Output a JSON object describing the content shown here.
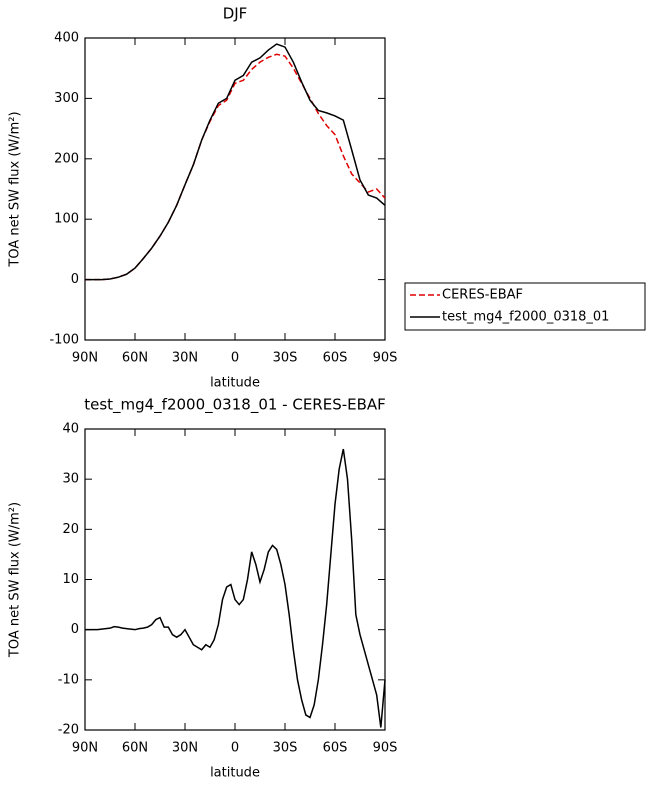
{
  "chart_data": [
    {
      "type": "line",
      "title": "DJF",
      "x_label": "latitude",
      "y_label": "TOA net SW flux (W/m²)",
      "x": [
        90,
        85,
        80,
        75,
        70,
        65,
        60,
        55,
        50,
        45,
        40,
        35,
        30,
        25,
        20,
        15,
        10,
        5,
        0,
        -5,
        -10,
        -15,
        -20,
        -25,
        -30,
        -35,
        -40,
        -45,
        -50,
        -55,
        -60,
        -65,
        -70,
        -75,
        -80,
        -85,
        -90
      ],
      "series": [
        {
          "name": "CERES-EBAF",
          "color": "#e00000",
          "line_style": "dashed",
          "values": [
            0,
            0,
            0,
            1,
            4,
            9,
            19,
            35,
            52,
            72,
            95,
            123,
            157,
            190,
            231,
            262,
            288,
            297,
            325,
            330,
            348,
            360,
            368,
            373,
            370,
            350,
            325,
            300,
            275,
            255,
            240,
            205,
            175,
            160,
            145,
            150,
            135
          ]
        },
        {
          "name": "test_mg4_f2000_0318_01",
          "color": "#000000",
          "line_style": "solid",
          "values": [
            0,
            0,
            0,
            1,
            4,
            9,
            19,
            35,
            52,
            72,
            95,
            123,
            157,
            190,
            231,
            264,
            292,
            300,
            330,
            338,
            360,
            367,
            380,
            390,
            385,
            360,
            327,
            297,
            280,
            276,
            271,
            264,
            215,
            165,
            140,
            135,
            123
          ]
        }
      ],
      "xlim": [
        90,
        -90
      ],
      "xticks": [
        {
          "value": 90,
          "label": "90N"
        },
        {
          "value": 60,
          "label": "60N"
        },
        {
          "value": 30,
          "label": "30N"
        },
        0,
        {
          "value": -30,
          "label": "30S"
        },
        {
          "value": -60,
          "label": "60S"
        },
        {
          "value": -90,
          "label": "90S"
        }
      ],
      "ylim": [
        -100,
        400
      ],
      "yticks": [
        -100,
        0,
        100,
        200,
        300,
        400
      ],
      "legend": "right"
    },
    {
      "type": "line",
      "title": "test_mg4_f2000_0318_01 - CERES-EBAF",
      "x_label": "latitude",
      "y_label": "TOA net SW flux (W/m²)",
      "x": [
        90,
        87.5,
        85,
        82.5,
        80,
        77.5,
        75,
        72.5,
        70,
        67.5,
        65,
        62.5,
        60,
        57.5,
        55,
        52.5,
        50,
        47.5,
        45,
        42.5,
        40,
        37.5,
        35,
        32.5,
        30,
        27.5,
        25,
        22.5,
        20,
        17.5,
        15,
        12.5,
        10,
        7.5,
        5,
        2.5,
        0,
        -2.5,
        -5,
        -7.5,
        -10,
        -12.5,
        -15,
        -17.5,
        -20,
        -22.5,
        -25,
        -27.5,
        -30,
        -32.5,
        -35,
        -37.5,
        -40,
        -42.5,
        -45,
        -47.5,
        -50,
        -52.5,
        -55,
        -57.5,
        -60,
        -62.5,
        -65,
        -67.5,
        -70,
        -72.5,
        -75,
        -77.5,
        -80,
        -82.5,
        -85,
        -87.5,
        -90
      ],
      "values": [
        0,
        0,
        0,
        0,
        0.1,
        0.2,
        0.3,
        0.6,
        0.5,
        0.3,
        0.2,
        0.1,
        0,
        0.2,
        0.3,
        0.5,
        1,
        2,
        2.4,
        0.5,
        0.5,
        -1,
        -1.5,
        -1,
        0,
        -1.5,
        -3,
        -3.5,
        -4,
        -3,
        -3.5,
        -2,
        1,
        6,
        8.5,
        9,
        6,
        5,
        6,
        10,
        15.5,
        13,
        9.5,
        12,
        15.5,
        16.8,
        16,
        13,
        9,
        3,
        -4,
        -10,
        -14,
        -17,
        -17.5,
        -15,
        -10,
        -3,
        5,
        15,
        25,
        32,
        36,
        30,
        18,
        3,
        -1,
        -4,
        -7,
        -10,
        -13,
        -19.5,
        -10
      ],
      "color": "#000000",
      "xlim": [
        90,
        -90
      ],
      "xticks": [
        {
          "value": 90,
          "label": "90N"
        },
        {
          "value": 60,
          "label": "60N"
        },
        {
          "value": 30,
          "label": "30N"
        },
        0,
        {
          "value": -30,
          "label": "30S"
        },
        {
          "value": -60,
          "label": "60S"
        },
        {
          "value": -90,
          "label": "90S"
        }
      ],
      "ylim": [
        -20,
        40
      ],
      "yticks": [
        -20,
        -10,
        0,
        10,
        20,
        30,
        40
      ]
    }
  ]
}
